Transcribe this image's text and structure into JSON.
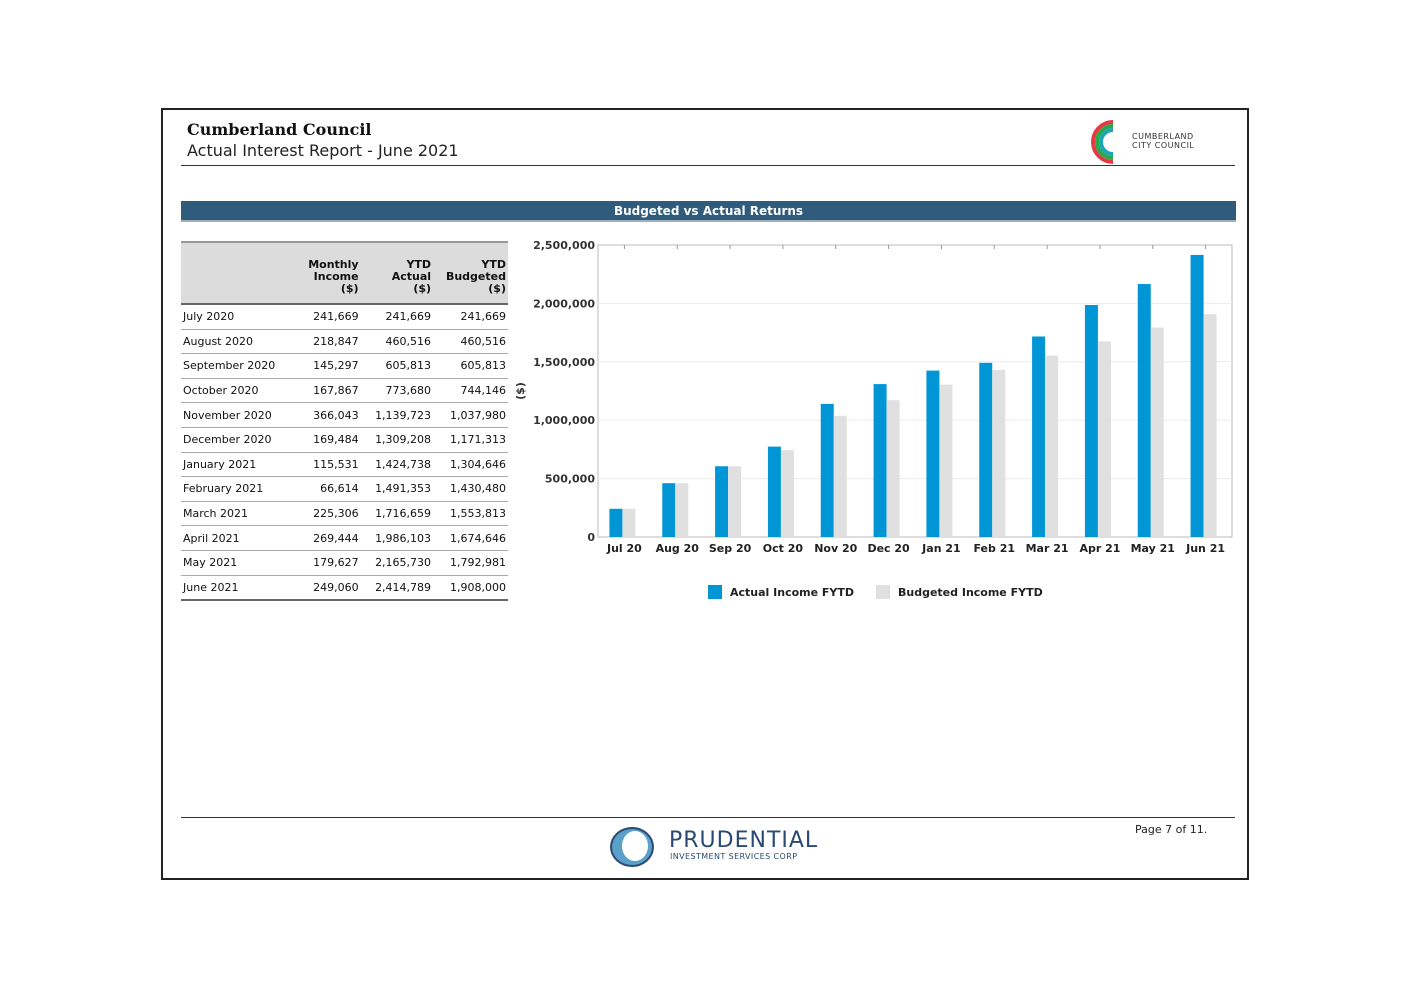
{
  "header": {
    "title": "Cumberland Council",
    "subtitle": "Actual Interest Report - June 2021",
    "logo_line1": "CUMBERLAND",
    "logo_line2": "CITY COUNCIL"
  },
  "section_title": "Budgeted vs Actual Returns",
  "table": {
    "headers": [
      "",
      "Monthly\nIncome\n($)",
      "YTD\nActual\n($)",
      "YTD\nBudgeted\n($)"
    ],
    "rows": [
      [
        "July 2020",
        "241,669",
        "241,669",
        "241,669"
      ],
      [
        "August 2020",
        "218,847",
        "460,516",
        "460,516"
      ],
      [
        "September 2020",
        "145,297",
        "605,813",
        "605,813"
      ],
      [
        "October 2020",
        "167,867",
        "773,680",
        "744,146"
      ],
      [
        "November 2020",
        "366,043",
        "1,139,723",
        "1,037,980"
      ],
      [
        "December 2020",
        "169,484",
        "1,309,208",
        "1,171,313"
      ],
      [
        "January 2021",
        "115,531",
        "1,424,738",
        "1,304,646"
      ],
      [
        "February 2021",
        "66,614",
        "1,491,353",
        "1,430,480"
      ],
      [
        "March 2021",
        "225,306",
        "1,716,659",
        "1,553,813"
      ],
      [
        "April 2021",
        "269,444",
        "1,986,103",
        "1,674,646"
      ],
      [
        "May 2021",
        "179,627",
        "2,165,730",
        "1,792,981"
      ],
      [
        "June 2021",
        "249,060",
        "2,414,789",
        "1,908,000"
      ]
    ]
  },
  "chart_data": {
    "type": "bar",
    "title": "Budgeted vs Actual Returns",
    "xlabel": "",
    "ylabel": "($)",
    "ylim": [
      0,
      2500000
    ],
    "yticks": [
      0,
      500000,
      1000000,
      1500000,
      2000000,
      2500000
    ],
    "ytick_labels": [
      "0",
      "500,000",
      "1,000,000",
      "1,500,000",
      "2,000,000",
      "2,500,000"
    ],
    "categories": [
      "Jul 20",
      "Aug 20",
      "Sep 20",
      "Oct 20",
      "Nov 20",
      "Dec 20",
      "Jan 21",
      "Feb 21",
      "Mar 21",
      "Apr 21",
      "May 21",
      "Jun 21"
    ],
    "series": [
      {
        "name": "Actual Income FYTD",
        "color": "#0096d6",
        "values": [
          241669,
          460516,
          605813,
          773680,
          1139723,
          1309208,
          1424738,
          1491353,
          1716659,
          1986103,
          2165730,
          2414789
        ]
      },
      {
        "name": "Budgeted Income FYTD",
        "color": "#e0e0e0",
        "values": [
          241669,
          460516,
          605813,
          744146,
          1037980,
          1171313,
          1304646,
          1430480,
          1553813,
          1674646,
          1792981,
          1908000
        ]
      }
    ],
    "legend": "bottom-center",
    "grid": true
  },
  "footer": {
    "brand_name": "PRUDENTIAL",
    "brand_sub": "INVESTMENT SERVICES CORP",
    "page_label": "Page 7 of 11."
  },
  "colors": {
    "header_bar": "#2f5b7c",
    "actual": "#0096d6",
    "budgeted": "#e0e0e0"
  }
}
